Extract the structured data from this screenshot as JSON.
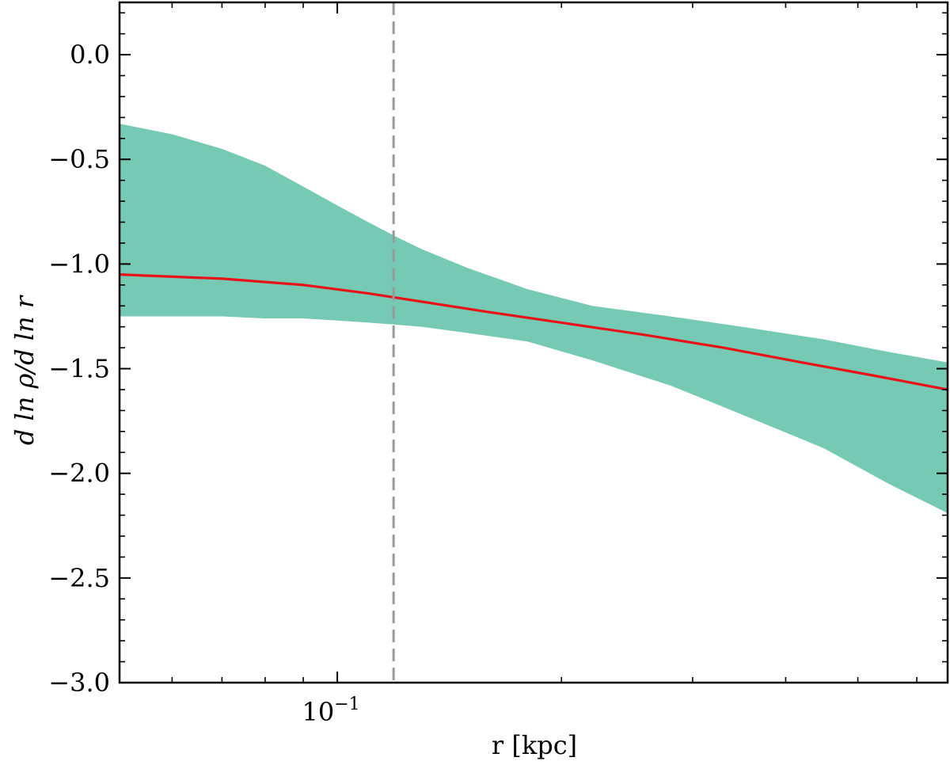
{
  "chart_data": {
    "type": "line",
    "xlabel": "r  [kpc]",
    "ylabel": "d ln ρ/d ln r",
    "xscale": "log",
    "xlim": [
      0.051,
      0.66
    ],
    "ylim": [
      -3.0,
      0.25
    ],
    "grid": false,
    "xtick_label": {
      "base": "10",
      "exp": "−1",
      "value": 0.1
    },
    "yticks": [
      {
        "value": 0.0,
        "label": "0.0"
      },
      {
        "value": -0.5,
        "label": "−0.5"
      },
      {
        "value": -1.0,
        "label": "−1.0"
      },
      {
        "value": -1.5,
        "label": "−1.5"
      },
      {
        "value": -2.0,
        "label": "−2.0"
      },
      {
        "value": -2.5,
        "label": "−2.5"
      },
      {
        "value": -3.0,
        "label": "−3.0"
      }
    ],
    "series": [
      {
        "x": [
          0.051,
          0.07,
          0.09,
          0.11,
          0.13,
          0.16,
          0.2,
          0.26,
          0.33,
          0.42,
          0.52,
          0.66
        ],
        "values": [
          -1.05,
          -1.07,
          -1.1,
          -1.14,
          -1.18,
          -1.23,
          -1.28,
          -1.34,
          -1.4,
          -1.47,
          -1.53,
          -1.6
        ],
        "color": "#e8131a"
      }
    ],
    "band": {
      "x": [
        0.051,
        0.06,
        0.07,
        0.08,
        0.09,
        0.1,
        0.11,
        0.12,
        0.13,
        0.15,
        0.18,
        0.22,
        0.28,
        0.35,
        0.45,
        0.55,
        0.66
      ],
      "upper": [
        -0.33,
        -0.38,
        -0.45,
        -0.53,
        -0.63,
        -0.72,
        -0.8,
        -0.87,
        -0.93,
        -1.02,
        -1.12,
        -1.2,
        -1.25,
        -1.3,
        -1.36,
        -1.42,
        -1.47
      ],
      "lower": [
        -1.25,
        -1.25,
        -1.25,
        -1.26,
        -1.26,
        -1.27,
        -1.28,
        -1.29,
        -1.3,
        -1.33,
        -1.37,
        -1.46,
        -1.58,
        -1.72,
        -1.88,
        -2.05,
        -2.19
      ],
      "color": "#76c9b2"
    },
    "vline": {
      "x": 0.119,
      "color": "#999999",
      "style": "dashed"
    }
  }
}
